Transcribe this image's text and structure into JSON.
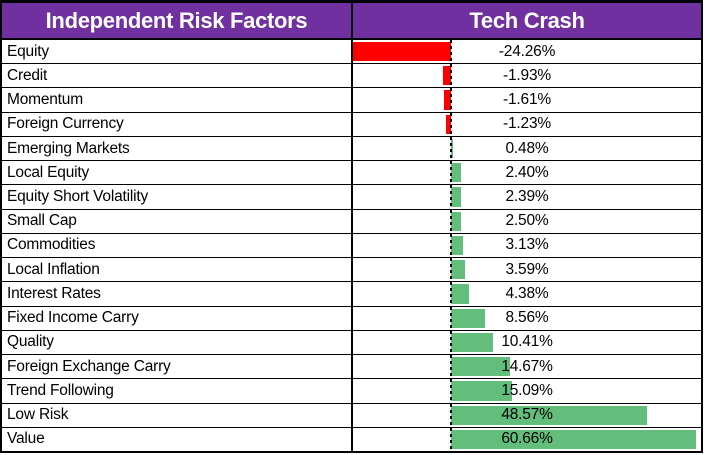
{
  "header": {
    "left": "Independent Risk Factors",
    "right": "Tech Crash"
  },
  "colors": {
    "header_bg": "#7030A0",
    "header_text": "#FFFFFF",
    "positive_bar": "#63BE7B",
    "negative_bar": "#FF0000",
    "border": "#000000",
    "text": "#000000"
  },
  "chart_data": {
    "type": "bar",
    "orientation": "horizontal",
    "title": "Tech Crash",
    "category_header": "Independent Risk Factors",
    "categories": [
      "Equity",
      "Credit",
      "Momentum",
      "Foreign Currency",
      "Emerging Markets",
      "Local Equity",
      "Equity Short Volatility",
      "Small Cap",
      "Commodities",
      "Local Inflation",
      "Interest Rates",
      "Fixed Income Carry",
      "Quality",
      "Foreign Exchange Carry",
      "Trend Following",
      "Low Risk",
      "Value"
    ],
    "values": [
      -24.26,
      -1.93,
      -1.61,
      -1.23,
      0.48,
      2.4,
      2.39,
      2.5,
      3.13,
      3.59,
      4.38,
      8.56,
      10.41,
      14.67,
      15.09,
      48.57,
      60.66
    ],
    "value_labels": [
      "-24.26%",
      "-1.93%",
      "-1.61%",
      "-1.23%",
      "0.48%",
      "2.40%",
      "2.39%",
      "2.50%",
      "3.13%",
      "3.59%",
      "4.38%",
      "8.56%",
      "10.41%",
      "14.67%",
      "15.09%",
      "48.57%",
      "60.66%"
    ],
    "xlim": [
      -24.26,
      62
    ],
    "zero_axis_style": "dashed",
    "grid": false,
    "legend": false,
    "value_label_alignment": "center-of-column"
  }
}
